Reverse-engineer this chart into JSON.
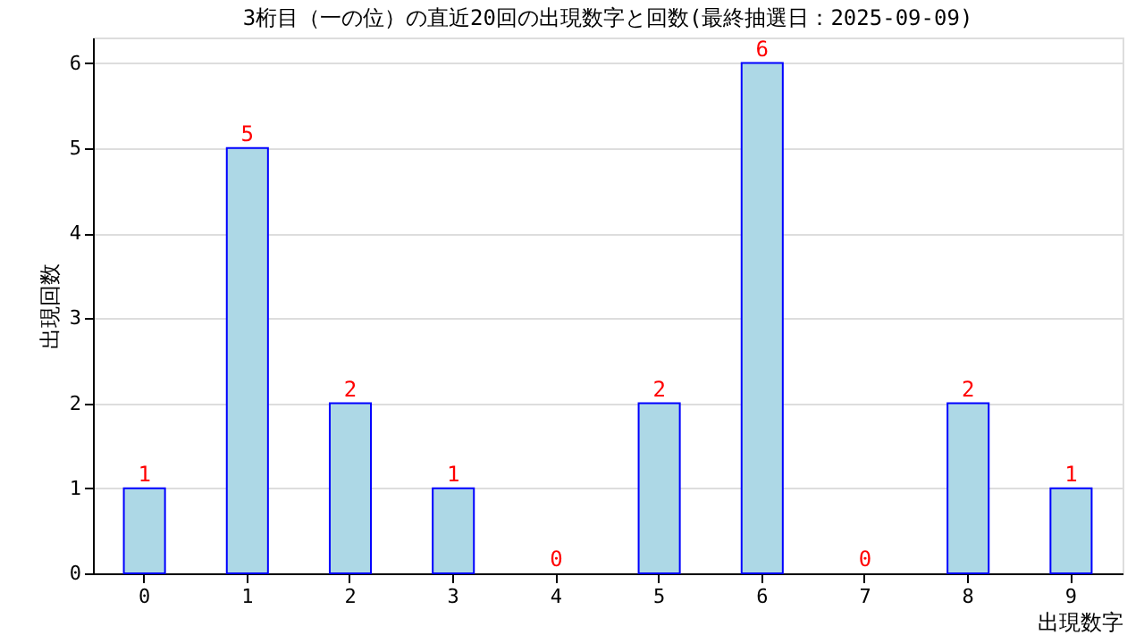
{
  "chart_data": {
    "type": "bar",
    "title": "3桁目（一の位）の直近20回の出現数字と回数(最終抽選日：2025-09-09)",
    "categories": [
      "0",
      "1",
      "2",
      "3",
      "4",
      "5",
      "6",
      "7",
      "8",
      "9"
    ],
    "values": [
      1,
      5,
      2,
      1,
      0,
      2,
      6,
      0,
      2,
      1
    ],
    "color": "#add8e6",
    "xlabel": "出現数字",
    "ylabel": "出現回数",
    "ylim": [
      0,
      6.3
    ],
    "yticks": [
      0,
      1,
      2,
      3,
      4,
      5,
      6
    ],
    "grid": "y",
    "data_labels": true
  }
}
